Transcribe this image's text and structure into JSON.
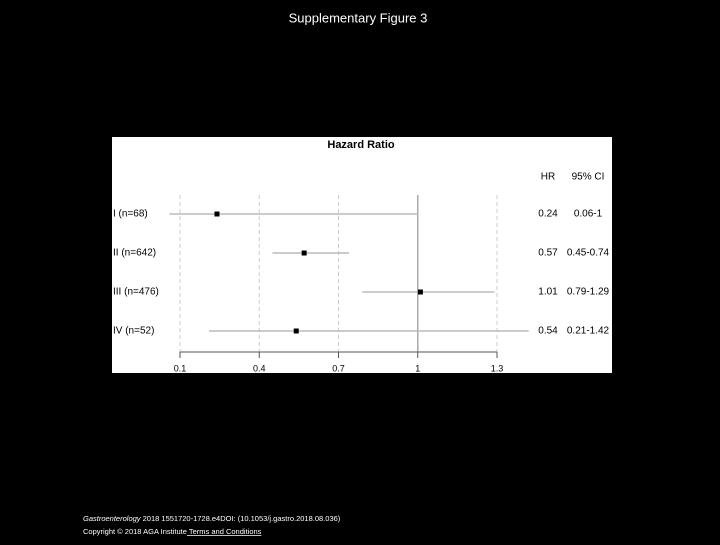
{
  "page": {
    "title": "Supplementary Figure 3",
    "citation_journal": "Gastroenterology",
    "citation_text": " 2018 1551720-1728.e4DOI: (10.1053/j.gastro.2018.08.036)",
    "copyright": "Copyright © 2018 AGA Institute",
    "terms": " Terms and Conditions"
  },
  "chart_data": {
    "type": "forest",
    "title": "Hazard Ratio",
    "hr_header": "HR",
    "ci_header": "95% CI",
    "categories": [
      "I (n=68)",
      "II (n=642)",
      "III (n=476)",
      "IV (n=52)"
    ],
    "values": [
      0.24,
      0.57,
      1.01,
      0.54
    ],
    "lower": [
      0.06,
      0.45,
      0.79,
      0.21
    ],
    "upper": [
      1,
      0.74,
      1.29,
      1.42
    ],
    "ci_labels": [
      "0.06-1",
      "0.45-0.74",
      "0.79-1.29",
      "0.21-1.42"
    ],
    "xlim": [
      0.1,
      1.3
    ],
    "xticks": [
      0.1,
      0.4,
      0.7,
      1,
      1.3
    ],
    "reference_line": 1,
    "grid": true,
    "color": "#000000",
    "whisker_color": "#bbbbbb"
  }
}
